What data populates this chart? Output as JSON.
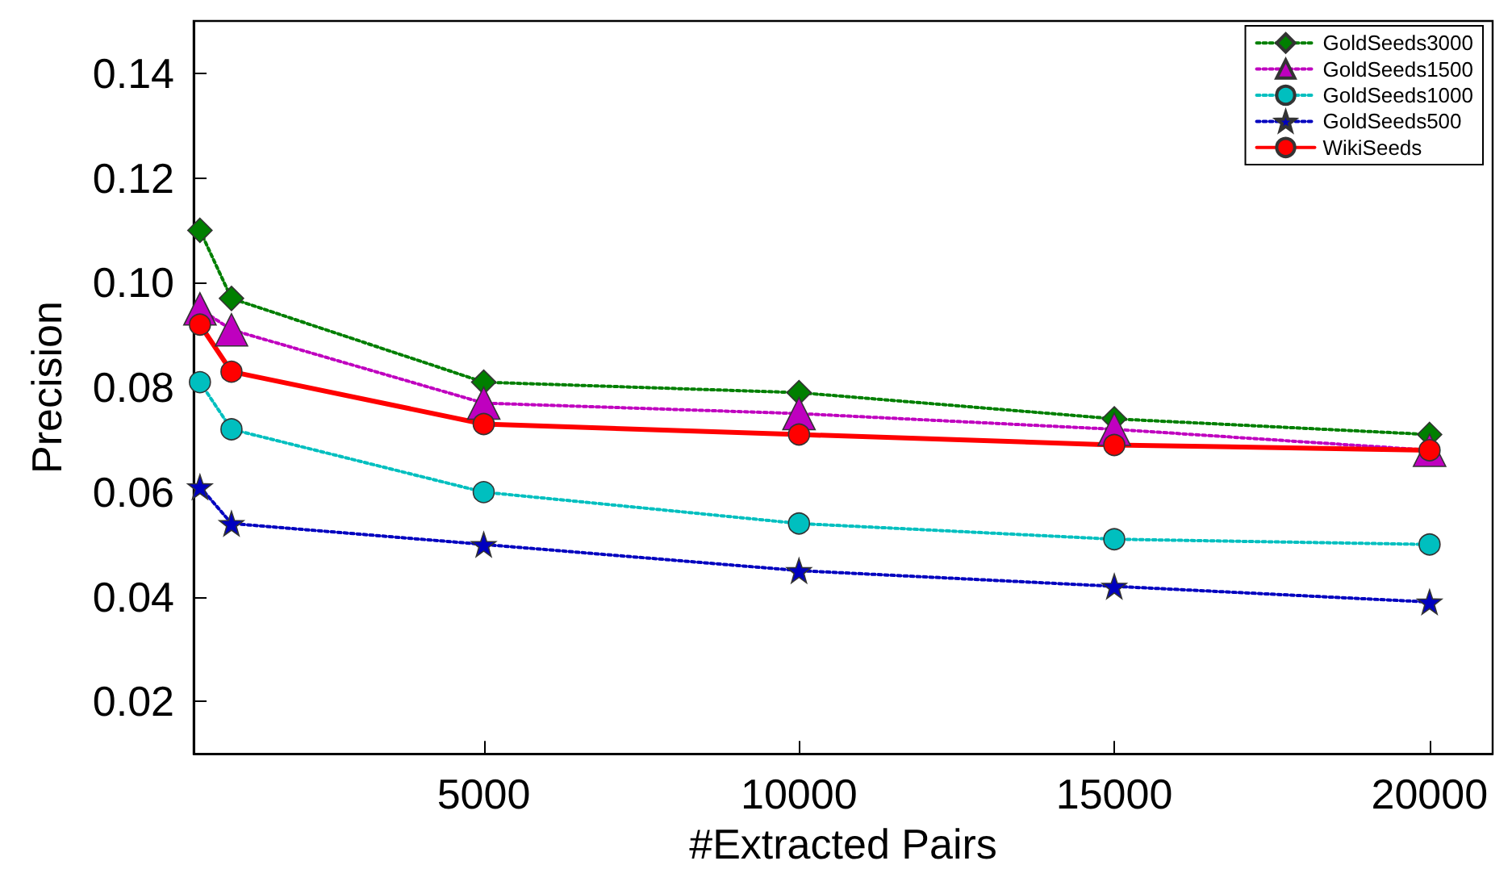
{
  "chart_data": {
    "type": "line",
    "xlabel": "#Extracted Pairs",
    "ylabel": "Precision",
    "x": [
      500,
      1000,
      5000,
      10000,
      15000,
      20000
    ],
    "xlim": [
      400,
      21000
    ],
    "xticks": [
      5000,
      10000,
      15000,
      20000
    ],
    "ylim": [
      0.01,
      0.15
    ],
    "yticks": [
      {
        "value": 0.02,
        "label": "0.02"
      },
      {
        "value": 0.04,
        "label": "0.04"
      },
      {
        "value": 0.06,
        "label": "0.06"
      },
      {
        "value": 0.08,
        "label": "0.08"
      },
      {
        "value": 0.1,
        "label": "0.10"
      },
      {
        "value": 0.12,
        "label": "0.12"
      },
      {
        "value": 0.14,
        "label": "0.14"
      }
    ],
    "grid": false,
    "legend": "top right",
    "series": [
      {
        "name": "GoldSeeds3000",
        "color": "#007f00",
        "marker": "diamond",
        "line_style": "dotted",
        "values": [
          0.11,
          0.097,
          0.081,
          0.079,
          0.074,
          0.071
        ]
      },
      {
        "name": "GoldSeeds1500",
        "color": "#bf00bf",
        "marker": "triangle",
        "line_style": "dotted",
        "values": [
          0.095,
          0.091,
          0.077,
          0.075,
          0.072,
          0.068
        ]
      },
      {
        "name": "GoldSeeds1000",
        "color": "#00bfbf",
        "marker": "circle",
        "line_style": "dotted",
        "values": [
          0.081,
          0.072,
          0.06,
          0.054,
          0.051,
          0.05
        ]
      },
      {
        "name": "GoldSeeds500",
        "color": "#0000bf",
        "marker": "star",
        "line_style": "dotted",
        "values": [
          0.061,
          0.054,
          0.05,
          0.045,
          0.042,
          0.039
        ]
      },
      {
        "name": "WikiSeeds",
        "color": "#ff0000",
        "marker": "circle",
        "line_style": "solid",
        "values": [
          0.092,
          0.083,
          0.073,
          0.071,
          0.069,
          0.068
        ]
      }
    ]
  }
}
